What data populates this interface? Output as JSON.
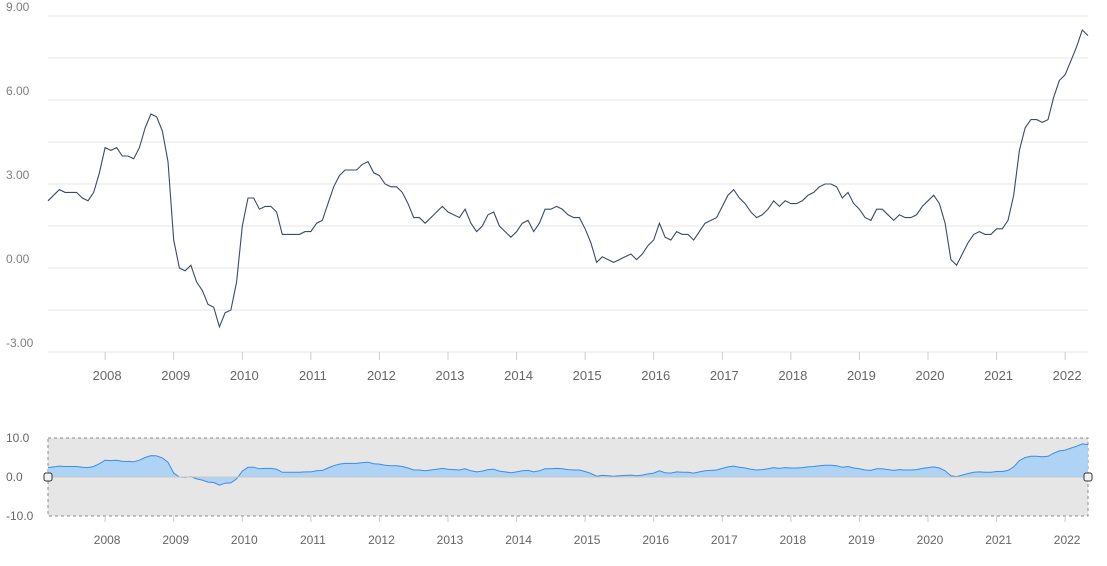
{
  "chart_data": [
    {
      "type": "line",
      "title": "",
      "xlabel": "",
      "ylabel": "",
      "x_range": [
        "2007-03",
        "2022-05"
      ],
      "ylim": [
        -3,
        9
      ],
      "yticks": [
        -3,
        0,
        3,
        6,
        9
      ],
      "ytick_labels": [
        "-3.00",
        "0.00",
        "3.00",
        "6.00",
        "9.00"
      ],
      "xtick_labels": [
        "2008",
        "2009",
        "2010",
        "2011",
        "2012",
        "2013",
        "2014",
        "2015",
        "2016",
        "2017",
        "2018",
        "2019",
        "2020",
        "2021",
        "2022"
      ],
      "grid": true,
      "line_color": "#3b4a66",
      "series": [
        {
          "values": [
            [
              "2007-03",
              2.4
            ],
            [
              "2007-04",
              2.6
            ],
            [
              "2007-05",
              2.8
            ],
            [
              "2007-06",
              2.7
            ],
            [
              "2007-07",
              2.7
            ],
            [
              "2007-08",
              2.7
            ],
            [
              "2007-09",
              2.5
            ],
            [
              "2007-10",
              2.4
            ],
            [
              "2007-11",
              2.7
            ],
            [
              "2007-12",
              3.4
            ],
            [
              "2008-01",
              4.3
            ],
            [
              "2008-02",
              4.2
            ],
            [
              "2008-03",
              4.3
            ],
            [
              "2008-04",
              4.0
            ],
            [
              "2008-05",
              4.0
            ],
            [
              "2008-06",
              3.9
            ],
            [
              "2008-07",
              4.3
            ],
            [
              "2008-08",
              5.0
            ],
            [
              "2008-09",
              5.5
            ],
            [
              "2008-10",
              5.4
            ],
            [
              "2008-11",
              4.9
            ],
            [
              "2008-12",
              3.8
            ],
            [
              "2009-01",
              1.0
            ],
            [
              "2009-02",
              0.0
            ],
            [
              "2009-03",
              -0.1
            ],
            [
              "2009-04",
              0.1
            ],
            [
              "2009-05",
              -0.5
            ],
            [
              "2009-06",
              -0.8
            ],
            [
              "2009-07",
              -1.3
            ],
            [
              "2009-08",
              -1.4
            ],
            [
              "2009-09",
              -2.1
            ],
            [
              "2009-10",
              -1.6
            ],
            [
              "2009-11",
              -1.5
            ],
            [
              "2009-12",
              -0.5
            ],
            [
              "2010-01",
              1.5
            ],
            [
              "2010-02",
              2.5
            ],
            [
              "2010-03",
              2.5
            ],
            [
              "2010-04",
              2.1
            ],
            [
              "2010-05",
              2.2
            ],
            [
              "2010-06",
              2.2
            ],
            [
              "2010-07",
              2.0
            ],
            [
              "2010-08",
              1.2
            ],
            [
              "2010-09",
              1.2
            ],
            [
              "2010-10",
              1.2
            ],
            [
              "2010-11",
              1.2
            ],
            [
              "2010-12",
              1.3
            ],
            [
              "2011-01",
              1.3
            ],
            [
              "2011-02",
              1.6
            ],
            [
              "2011-03",
              1.7
            ],
            [
              "2011-04",
              2.3
            ],
            [
              "2011-05",
              2.9
            ],
            [
              "2011-06",
              3.3
            ],
            [
              "2011-07",
              3.5
            ],
            [
              "2011-08",
              3.5
            ],
            [
              "2011-09",
              3.5
            ],
            [
              "2011-10",
              3.7
            ],
            [
              "2011-11",
              3.8
            ],
            [
              "2011-12",
              3.4
            ],
            [
              "2012-01",
              3.3
            ],
            [
              "2012-02",
              3.0
            ],
            [
              "2012-03",
              2.9
            ],
            [
              "2012-04",
              2.9
            ],
            [
              "2012-05",
              2.7
            ],
            [
              "2012-06",
              2.3
            ],
            [
              "2012-07",
              1.8
            ],
            [
              "2012-08",
              1.8
            ],
            [
              "2012-09",
              1.6
            ],
            [
              "2012-10",
              1.8
            ],
            [
              "2012-11",
              2.0
            ],
            [
              "2012-12",
              2.2
            ],
            [
              "2013-01",
              2.0
            ],
            [
              "2013-02",
              1.9
            ],
            [
              "2013-03",
              1.8
            ],
            [
              "2013-04",
              2.1
            ],
            [
              "2013-05",
              1.6
            ],
            [
              "2013-06",
              1.3
            ],
            [
              "2013-07",
              1.5
            ],
            [
              "2013-08",
              1.9
            ],
            [
              "2013-09",
              2.0
            ],
            [
              "2013-10",
              1.5
            ],
            [
              "2013-11",
              1.3
            ],
            [
              "2013-12",
              1.1
            ],
            [
              "2014-01",
              1.3
            ],
            [
              "2014-02",
              1.6
            ],
            [
              "2014-03",
              1.7
            ],
            [
              "2014-04",
              1.3
            ],
            [
              "2014-05",
              1.6
            ],
            [
              "2014-06",
              2.1
            ],
            [
              "2014-07",
              2.1
            ],
            [
              "2014-08",
              2.2
            ],
            [
              "2014-09",
              2.1
            ],
            [
              "2014-10",
              1.9
            ],
            [
              "2014-11",
              1.8
            ],
            [
              "2014-12",
              1.8
            ],
            [
              "2015-01",
              1.4
            ],
            [
              "2015-02",
              0.9
            ],
            [
              "2015-03",
              0.2
            ],
            [
              "2015-04",
              0.4
            ],
            [
              "2015-05",
              0.3
            ],
            [
              "2015-06",
              0.2
            ],
            [
              "2015-07",
              0.3
            ],
            [
              "2015-08",
              0.4
            ],
            [
              "2015-09",
              0.5
            ],
            [
              "2015-10",
              0.3
            ],
            [
              "2015-11",
              0.5
            ],
            [
              "2015-12",
              0.8
            ],
            [
              "2016-01",
              1.0
            ],
            [
              "2016-02",
              1.6
            ],
            [
              "2016-03",
              1.1
            ],
            [
              "2016-04",
              1.0
            ],
            [
              "2016-05",
              1.3
            ],
            [
              "2016-06",
              1.2
            ],
            [
              "2016-07",
              1.2
            ],
            [
              "2016-08",
              1.0
            ],
            [
              "2016-09",
              1.3
            ],
            [
              "2016-10",
              1.6
            ],
            [
              "2016-11",
              1.7
            ],
            [
              "2016-12",
              1.8
            ],
            [
              "2017-01",
              2.2
            ],
            [
              "2017-02",
              2.6
            ],
            [
              "2017-03",
              2.8
            ],
            [
              "2017-04",
              2.5
            ],
            [
              "2017-05",
              2.3
            ],
            [
              "2017-06",
              2.0
            ],
            [
              "2017-07",
              1.8
            ],
            [
              "2017-08",
              1.9
            ],
            [
              "2017-09",
              2.1
            ],
            [
              "2017-10",
              2.4
            ],
            [
              "2017-11",
              2.2
            ],
            [
              "2017-12",
              2.4
            ],
            [
              "2018-01",
              2.3
            ],
            [
              "2018-02",
              2.3
            ],
            [
              "2018-03",
              2.4
            ],
            [
              "2018-04",
              2.6
            ],
            [
              "2018-05",
              2.7
            ],
            [
              "2018-06",
              2.9
            ],
            [
              "2018-07",
              3.0
            ],
            [
              "2018-08",
              3.0
            ],
            [
              "2018-09",
              2.9
            ],
            [
              "2018-10",
              2.5
            ],
            [
              "2018-11",
              2.7
            ],
            [
              "2018-12",
              2.3
            ],
            [
              "2019-01",
              2.1
            ],
            [
              "2019-02",
              1.8
            ],
            [
              "2019-03",
              1.7
            ],
            [
              "2019-04",
              2.1
            ],
            [
              "2019-05",
              2.1
            ],
            [
              "2019-06",
              1.9
            ],
            [
              "2019-07",
              1.7
            ],
            [
              "2019-08",
              1.9
            ],
            [
              "2019-09",
              1.8
            ],
            [
              "2019-10",
              1.8
            ],
            [
              "2019-11",
              1.9
            ],
            [
              "2019-12",
              2.2
            ],
            [
              "2020-01",
              2.4
            ],
            [
              "2020-02",
              2.6
            ],
            [
              "2020-03",
              2.3
            ],
            [
              "2020-04",
              1.6
            ],
            [
              "2020-05",
              0.3
            ],
            [
              "2020-06",
              0.1
            ],
            [
              "2020-07",
              0.5
            ],
            [
              "2020-08",
              0.9
            ],
            [
              "2020-09",
              1.2
            ],
            [
              "2020-10",
              1.3
            ],
            [
              "2020-11",
              1.2
            ],
            [
              "2020-12",
              1.2
            ],
            [
              "2021-01",
              1.4
            ],
            [
              "2021-02",
              1.4
            ],
            [
              "2021-03",
              1.7
            ],
            [
              "2021-04",
              2.6
            ],
            [
              "2021-05",
              4.2
            ],
            [
              "2021-06",
              5.0
            ],
            [
              "2021-07",
              5.3
            ],
            [
              "2021-08",
              5.3
            ],
            [
              "2021-09",
              5.2
            ],
            [
              "2021-10",
              5.3
            ],
            [
              "2021-11",
              6.1
            ],
            [
              "2021-12",
              6.7
            ],
            [
              "2022-01",
              6.9
            ],
            [
              "2022-02",
              7.4
            ],
            [
              "2022-03",
              7.9
            ],
            [
              "2022-04",
              8.5
            ],
            [
              "2022-05",
              8.3
            ]
          ]
        }
      ]
    },
    {
      "type": "area",
      "title": "",
      "xlabel": "",
      "ylabel": "",
      "role": "navigator",
      "ylim": [
        -10,
        10
      ],
      "yticks": [
        -10,
        0,
        10
      ],
      "ytick_labels": [
        "-10.0",
        "0.0",
        "10.0"
      ],
      "xtick_labels": [
        "2008",
        "2009",
        "2010",
        "2011",
        "2012",
        "2013",
        "2014",
        "2015",
        "2016",
        "2017",
        "2018",
        "2019",
        "2020",
        "2021",
        "2022"
      ],
      "line_color": "#3a8ee0",
      "fill_color": "#a9d0f5",
      "mask_color": "#e6e6e6",
      "selected_range": [
        "2007-03",
        "2022-05"
      ]
    }
  ]
}
